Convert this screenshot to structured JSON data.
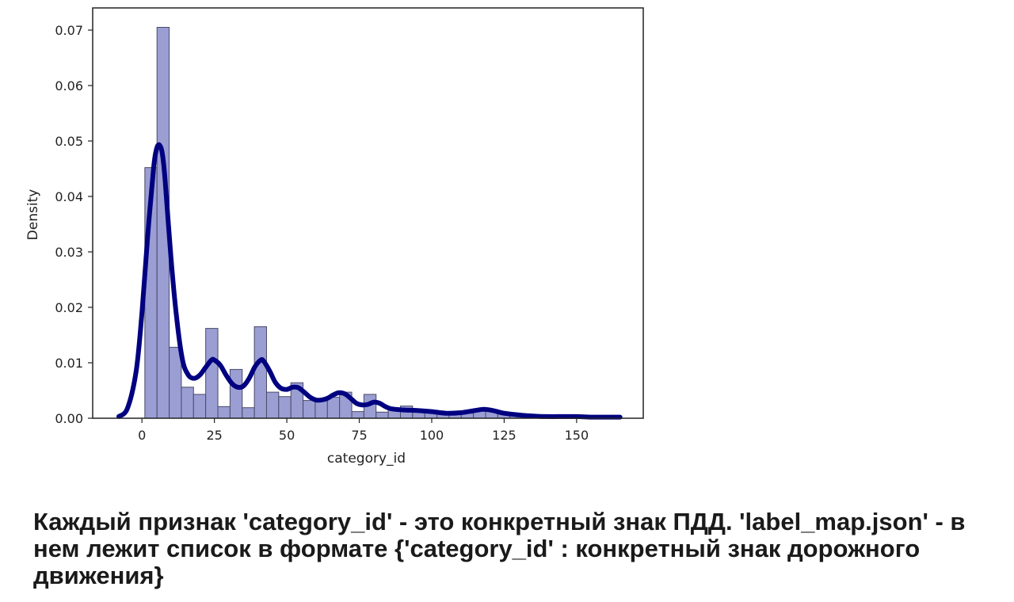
{
  "chart_data": {
    "type": "bar",
    "xlabel": "category_id",
    "ylabel": "Density",
    "xlim": [
      -17,
      173
    ],
    "ylim": [
      0,
      0.074
    ],
    "xticks": [
      0,
      25,
      50,
      75,
      100,
      125,
      150
    ],
    "yticks": [
      0.0,
      0.01,
      0.02,
      0.03,
      0.04,
      0.05,
      0.06,
      0.07
    ],
    "ytick_labels": [
      "0.00",
      "0.01",
      "0.02",
      "0.03",
      "0.04",
      "0.05",
      "0.06",
      "0.07"
    ],
    "bin_width": 4.2,
    "bins": [
      {
        "x0": 1.0,
        "density": 0.0452
      },
      {
        "x0": 5.2,
        "density": 0.0705
      },
      {
        "x0": 9.4,
        "density": 0.0128
      },
      {
        "x0": 13.6,
        "density": 0.0056
      },
      {
        "x0": 17.8,
        "density": 0.0043
      },
      {
        "x0": 22.0,
        "density": 0.0162
      },
      {
        "x0": 26.2,
        "density": 0.0021
      },
      {
        "x0": 30.4,
        "density": 0.0088
      },
      {
        "x0": 34.6,
        "density": 0.0019
      },
      {
        "x0": 38.8,
        "density": 0.0165
      },
      {
        "x0": 43.0,
        "density": 0.0047
      },
      {
        "x0": 47.2,
        "density": 0.0039
      },
      {
        "x0": 51.4,
        "density": 0.0064
      },
      {
        "x0": 55.6,
        "density": 0.0032
      },
      {
        "x0": 59.8,
        "density": 0.0031
      },
      {
        "x0": 64.0,
        "density": 0.0038
      },
      {
        "x0": 68.2,
        "density": 0.0047
      },
      {
        "x0": 72.4,
        "density": 0.0012
      },
      {
        "x0": 76.6,
        "density": 0.0043
      },
      {
        "x0": 80.8,
        "density": 0.0011
      },
      {
        "x0": 85.0,
        "density": 0.0016
      },
      {
        "x0": 89.2,
        "density": 0.0022
      },
      {
        "x0": 93.4,
        "density": 0.0015
      },
      {
        "x0": 97.6,
        "density": 0.0013
      },
      {
        "x0": 101.8,
        "density": 0.0012
      },
      {
        "x0": 106.0,
        "density": 0.0008
      },
      {
        "x0": 110.2,
        "density": 0.0009
      },
      {
        "x0": 114.4,
        "density": 0.0013
      },
      {
        "x0": 118.6,
        "density": 0.0012
      },
      {
        "x0": 122.8,
        "density": 0.001
      },
      {
        "x0": 127.0,
        "density": 0.0007
      },
      {
        "x0": 131.2,
        "density": 0.0004
      },
      {
        "x0": 135.4,
        "density": 0.0003
      },
      {
        "x0": 139.6,
        "density": 0.0002
      },
      {
        "x0": 143.8,
        "density": 0.0003
      },
      {
        "x0": 148.0,
        "density": 0.0002
      },
      {
        "x0": 152.2,
        "density": 0.0001
      },
      {
        "x0": 156.4,
        "density": 0.0001
      },
      {
        "x0": 160.6,
        "density": 0.0001
      }
    ],
    "kde": {
      "x": [
        -8,
        -5,
        -2,
        0,
        2,
        4,
        5,
        6,
        7,
        8,
        10,
        12,
        14,
        16,
        18,
        20,
        22,
        24,
        25,
        27,
        29,
        31,
        33,
        35,
        37,
        39,
        41,
        42,
        44,
        46,
        48,
        50,
        52,
        54,
        56,
        58,
        60,
        62,
        64,
        66,
        68,
        70,
        72,
        74,
        76,
        78,
        80,
        82,
        84,
        86,
        90,
        95,
        100,
        105,
        110,
        115,
        118,
        121,
        125,
        130,
        135,
        140,
        145,
        150,
        155,
        160,
        165
      ],
      "y": [
        0.0003,
        0.0018,
        0.0085,
        0.019,
        0.033,
        0.045,
        0.0485,
        0.0493,
        0.0478,
        0.043,
        0.029,
        0.018,
        0.0105,
        0.0078,
        0.0072,
        0.0078,
        0.0092,
        0.0105,
        0.0105,
        0.0096,
        0.0078,
        0.0063,
        0.0056,
        0.0058,
        0.0072,
        0.0093,
        0.0105,
        0.0103,
        0.0086,
        0.0065,
        0.0054,
        0.0052,
        0.0056,
        0.0055,
        0.0047,
        0.0038,
        0.0033,
        0.0033,
        0.0036,
        0.0042,
        0.0046,
        0.0044,
        0.0036,
        0.0027,
        0.0024,
        0.0025,
        0.0029,
        0.0027,
        0.0021,
        0.0017,
        0.0015,
        0.0014,
        0.0012,
        0.0009,
        0.001,
        0.0014,
        0.0016,
        0.0014,
        0.0009,
        0.0006,
        0.0004,
        0.0003,
        0.0003,
        0.0003,
        0.0002,
        0.0002,
        0.0002
      ]
    },
    "colors": {
      "bar_fill": "#9a9ed3",
      "bar_edge": "#4a4a68",
      "kde_line": "#000080",
      "axes": "#222222"
    }
  },
  "caption": "Каждый признак 'category_id' - это конкретный знак ПДД. 'label_map.json' - в нем лежит список в формате {'category_id' : конкретный знак дорожного движения}"
}
